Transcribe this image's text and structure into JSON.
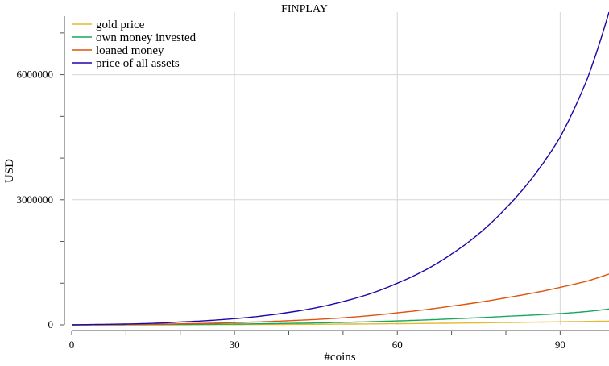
{
  "chart_data": {
    "type": "line",
    "title": "FINPLAY",
    "xlabel": "#coins",
    "ylabel": "USD",
    "xlim": [
      0,
      99
    ],
    "ylim": [
      0,
      7500000
    ],
    "x_ticks": [
      0,
      30,
      60,
      90
    ],
    "x_tick_labels": [
      "0",
      "30",
      "60",
      "90"
    ],
    "y_ticks": [
      0,
      3000000,
      6000000
    ],
    "y_tick_labels": [
      "0",
      "3000000",
      "6000000"
    ],
    "grid": true,
    "legend_position": "top-left",
    "x": [
      0,
      10,
      20,
      30,
      40,
      50,
      60,
      70,
      80,
      90,
      95,
      99
    ],
    "series": [
      {
        "name": "gold price",
        "color": "#e3b92f",
        "values": [
          0,
          1000,
          3000,
          6000,
          11000,
          18000,
          28000,
          41000,
          57000,
          74000,
          83000,
          90000
        ]
      },
      {
        "name": "own money invested",
        "color": "#19a55a",
        "values": [
          0,
          3000,
          9000,
          19000,
          35000,
          60000,
          95000,
          145000,
          205000,
          270000,
          320000,
          380000
        ]
      },
      {
        "name": "loaned money",
        "color": "#e0520f",
        "values": [
          0,
          8000,
          25000,
          55000,
          100000,
          170000,
          290000,
          450000,
          650000,
          900000,
          1050000,
          1220000
        ]
      },
      {
        "name": "price of all assets",
        "color": "#1e06a8",
        "values": [
          0,
          20000,
          70000,
          150000,
          300000,
          560000,
          1000000,
          1700000,
          2800000,
          4500000,
          5900000,
          7500000
        ]
      }
    ]
  }
}
